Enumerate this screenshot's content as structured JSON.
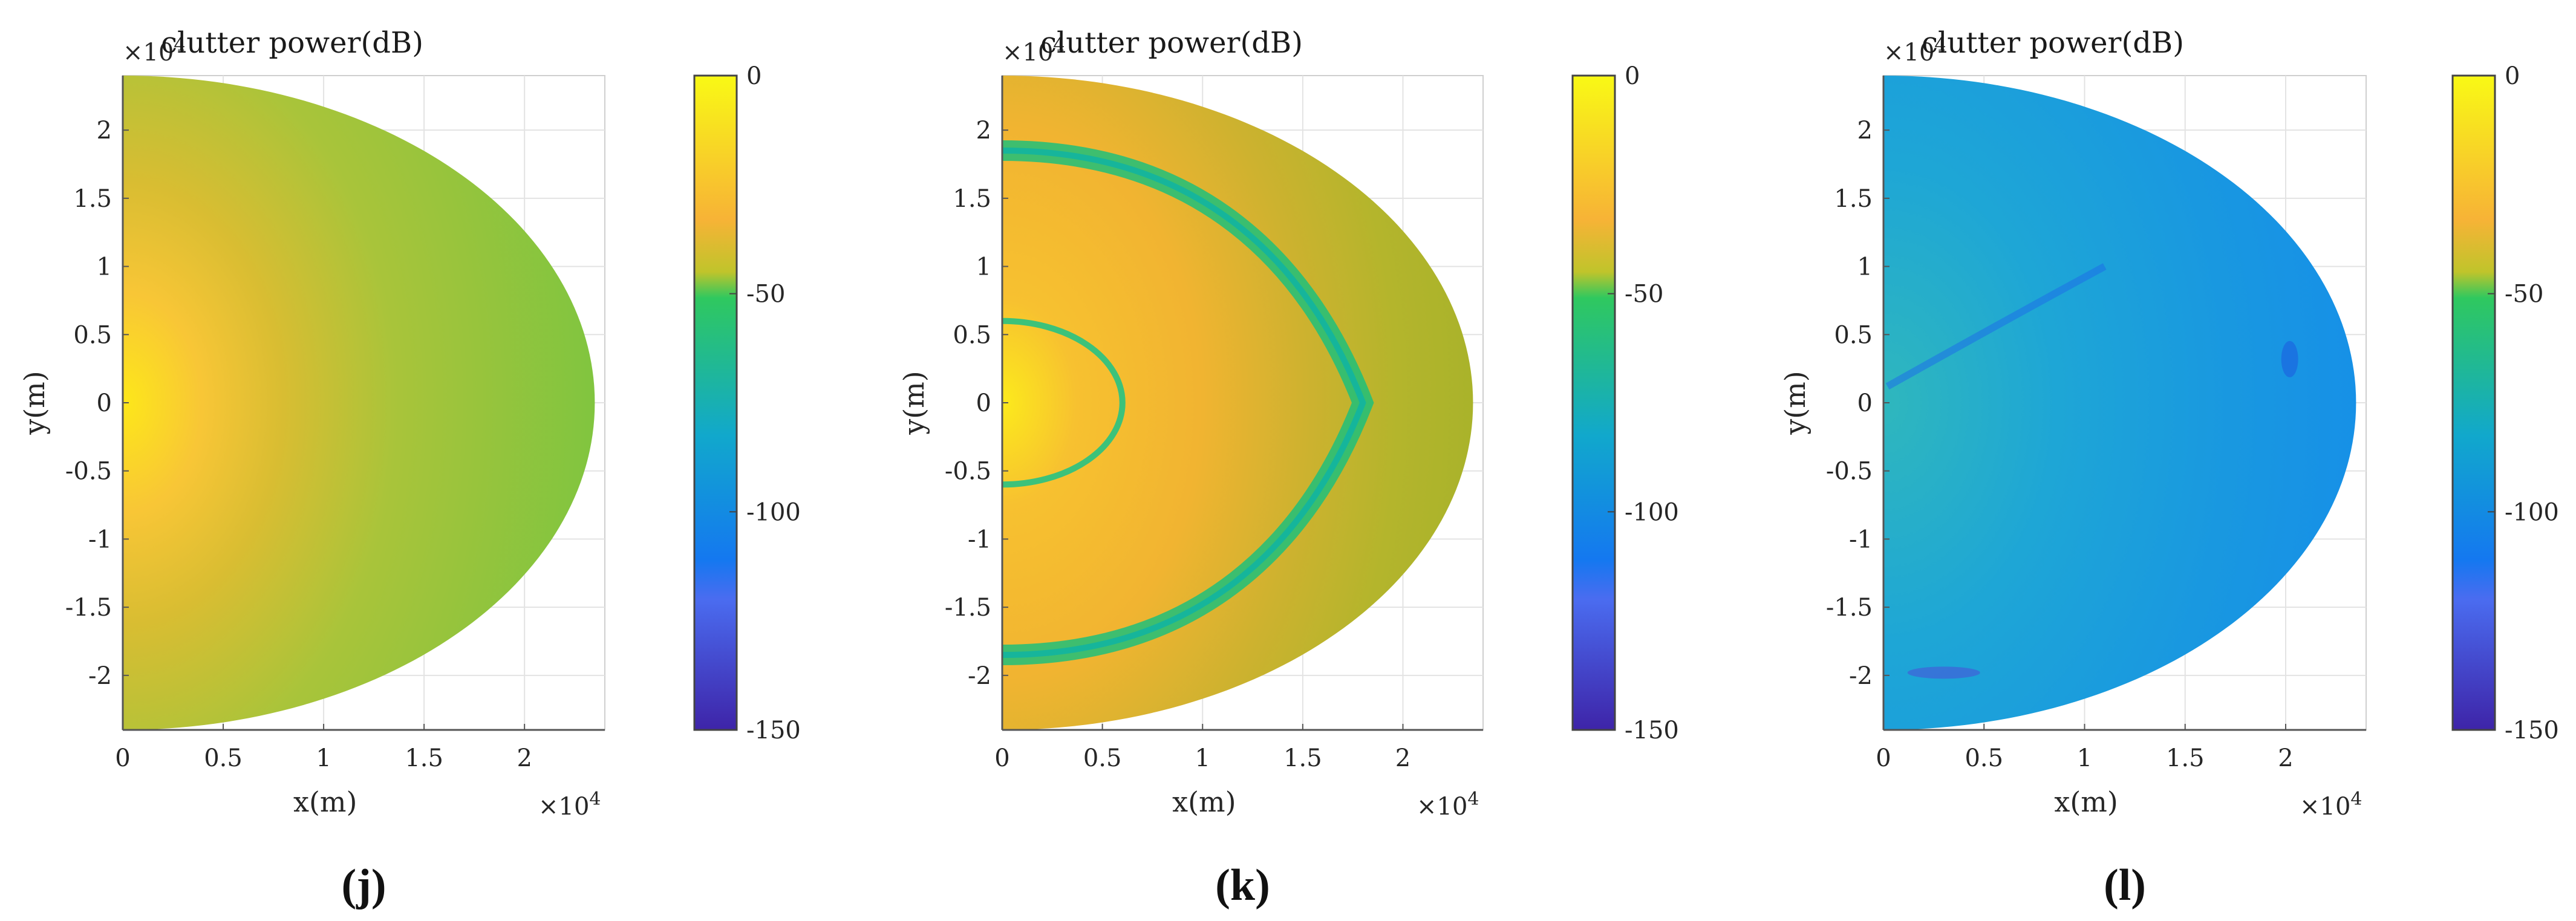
{
  "chart_data": [
    {
      "type": "heatmap",
      "panel": "(j)",
      "title": "clutter power(dB)",
      "xlabel": "x(m)",
      "ylabel": "y(m)",
      "x_exponent": "×10",
      "exp_power": "4",
      "xlim": [
        0,
        2.4
      ],
      "ylim": [
        -2.4,
        2.4
      ],
      "x_ticks": [
        0,
        0.5,
        1,
        1.5,
        2
      ],
      "x_tick_labels": [
        "0",
        "0.5",
        "1",
        "1.5",
        "2"
      ],
      "y_ticks": [
        2,
        1.5,
        1,
        0.5,
        0,
        -0.5,
        -1,
        -1.5,
        -2
      ],
      "y_tick_labels": [
        "2",
        "1.5",
        "1",
        "0.5",
        "0",
        "-0.5",
        "-1",
        "-1.5",
        "-2"
      ],
      "region": "half-ellipse, x from 0 to 2.35, y from -2.4 to 2.4",
      "pattern": "peak near origin, smoothly decaying outward",
      "peak_db": -12,
      "edge_db": -40
    },
    {
      "type": "heatmap",
      "panel": "(k)",
      "title": "clutter power(dB)",
      "xlabel": "x(m)",
      "ylabel": "y(m)",
      "x_exponent": "×10",
      "exp_power": "4",
      "xlim": [
        0,
        2.4
      ],
      "ylim": [
        -2.4,
        2.4
      ],
      "x_ticks": [
        0,
        0.5,
        1,
        1.5,
        2
      ],
      "x_tick_labels": [
        "0",
        "0.5",
        "1",
        "1.5",
        "2"
      ],
      "y_ticks": [
        2,
        1.5,
        1,
        0.5,
        0,
        -0.5,
        -1,
        -1.5,
        -2
      ],
      "y_tick_labels": [
        "2",
        "1.5",
        "1",
        "0.5",
        "0",
        "-0.5",
        "-1",
        "-1.5",
        "-2"
      ],
      "region": "half-ellipse, x from 0 to 2.35, y from -2.4 to 2.4",
      "pattern": "peak near origin with a thin null ring at r ≈ 0.6 and a broad null band at r ≈ 1.8",
      "peak_db": -5,
      "edge_db": -35,
      "null_db": -60
    },
    {
      "type": "heatmap",
      "panel": "(l)",
      "title": "clutter power(dB)",
      "xlabel": "x(m)",
      "ylabel": "y(m)",
      "x_exponent": "×10",
      "exp_power": "4",
      "xlim": [
        0,
        2.4
      ],
      "ylim": [
        -2.4,
        2.4
      ],
      "x_ticks": [
        0,
        0.5,
        1,
        1.5,
        2
      ],
      "x_tick_labels": [
        "0",
        "0.5",
        "1",
        "1.5",
        "2"
      ],
      "y_ticks": [
        2,
        1.5,
        1,
        0.5,
        0,
        -0.5,
        -1,
        -1.5,
        -2
      ],
      "y_tick_labels": [
        "2",
        "1.5",
        "1",
        "0.5",
        "0",
        "-0.5",
        "-1",
        "-1.5",
        "-2"
      ],
      "region": "half-ellipse, x from 0 to 2.35, y from -2.4 to 2.4",
      "pattern": "nearly uniform low power (about -80 dB) with faint null streaks",
      "peak_db": -70,
      "edge_db": -85
    }
  ],
  "colorbar": {
    "range": [
      -150,
      0
    ],
    "ticks": [
      0,
      -50,
      -100,
      -150
    ],
    "tick_labels": [
      "0",
      "-50",
      "-100",
      "-150"
    ],
    "colors": {
      "top": "#f9f915",
      "upper": "#f7b336",
      "mid": "#c0c42b",
      "green": "#2fc85f",
      "lower": "#11a8cc",
      "blue": "#1478f0",
      "bottom": "#3e24a8"
    }
  }
}
